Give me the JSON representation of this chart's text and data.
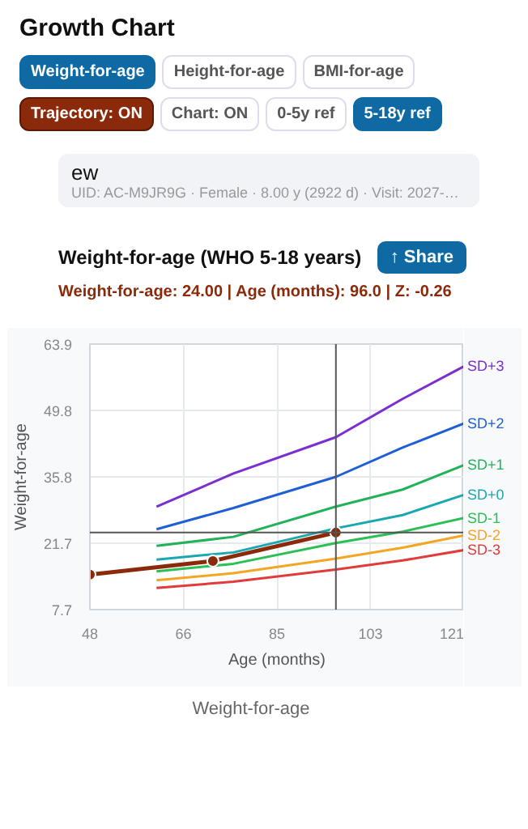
{
  "chart_data": {
    "type": "line",
    "title": "Weight-for-age (WHO 5-18 years)",
    "subtitle": "Weight-for-age: 24.00 | Age (months): 96.0 | Z: -0.26",
    "xlabel": "Age (months)",
    "ylabel": "Weight-for-age",
    "annotations": [
      "Growth Chart",
      "Weight-for-age",
      "Height-for-age",
      "BMI-for-age",
      "Trajectory: ON",
      "Chart: ON",
      "0-5y ref",
      "5-18y ref",
      "ew",
      "UID: AC-M9JR9G · Female · 8.00 y (2922 d) · Visit: 2027-…",
      "↑ Share",
      "Weight-for-age"
    ],
    "xlim": [
      48,
      121
    ],
    "xticks": [
      48,
      {
        "value": 66.25,
        "label": "66"
      },
      {
        "value": 84.5,
        "label": "85"
      },
      {
        "value": 102.75,
        "label": "103"
      },
      121
    ],
    "ylim": [
      7.7,
      63.9
    ],
    "yticks": [
      7.7,
      {
        "value": 21.75,
        "label": "21.7"
      },
      35.8,
      {
        "value": 49.85,
        "label": "49.8"
      },
      63.9
    ],
    "grid": true,
    "line_style": "solid",
    "series": [
      {
        "name": "SD+3",
        "color": "#7b2fd0",
        "marker": "none",
        "x": [
          61,
          76,
          96,
          109,
          121
        ],
        "values": [
          29.5,
          36.5,
          44.2,
          52.3,
          59.2
        ]
      },
      {
        "name": "SD+2",
        "color": "#1f5fd6",
        "marker": "none",
        "x": [
          61,
          76,
          96,
          109,
          121
        ],
        "values": [
          24.7,
          29.2,
          35.8,
          42.0,
          47.1
        ]
      },
      {
        "name": "SD+1",
        "color": "#22b35a",
        "marker": "none",
        "x": [
          61,
          76,
          96,
          109,
          121
        ],
        "values": [
          21.2,
          23.1,
          29.5,
          33.1,
          38.3
        ]
      },
      {
        "name": "SD+0",
        "color": "#1aa8b0",
        "marker": "none",
        "x": [
          61,
          76,
          96,
          109,
          121
        ],
        "values": [
          18.3,
          19.8,
          24.9,
          27.7,
          32.0
        ]
      },
      {
        "name": "SD-1",
        "color": "#2bbf55",
        "marker": "none",
        "x": [
          61,
          76,
          96,
          109,
          121
        ],
        "values": [
          15.8,
          17.4,
          21.8,
          24.2,
          27.1
        ]
      },
      {
        "name": "SD-2",
        "color": "#f5a524",
        "marker": "none",
        "x": [
          61,
          76,
          96,
          109,
          121
        ],
        "values": [
          13.9,
          15.4,
          18.5,
          20.8,
          23.4
        ]
      },
      {
        "name": "SD-3",
        "color": "#e23b3b",
        "marker": "none",
        "x": [
          61,
          76,
          96,
          109,
          121
        ],
        "values": [
          12.3,
          13.6,
          16.2,
          18.1,
          20.3
        ]
      },
      {
        "color": "#8b2a0a",
        "marker": "circle",
        "x": [
          48,
          72,
          96
        ],
        "values": [
          15.1,
          18.0,
          24.0
        ]
      }
    ],
    "ref_lines": [
      {
        "axis": "x",
        "value": 96,
        "color": "#555555"
      },
      {
        "axis": "y",
        "value": 24,
        "color": "#555555"
      }
    ]
  }
}
